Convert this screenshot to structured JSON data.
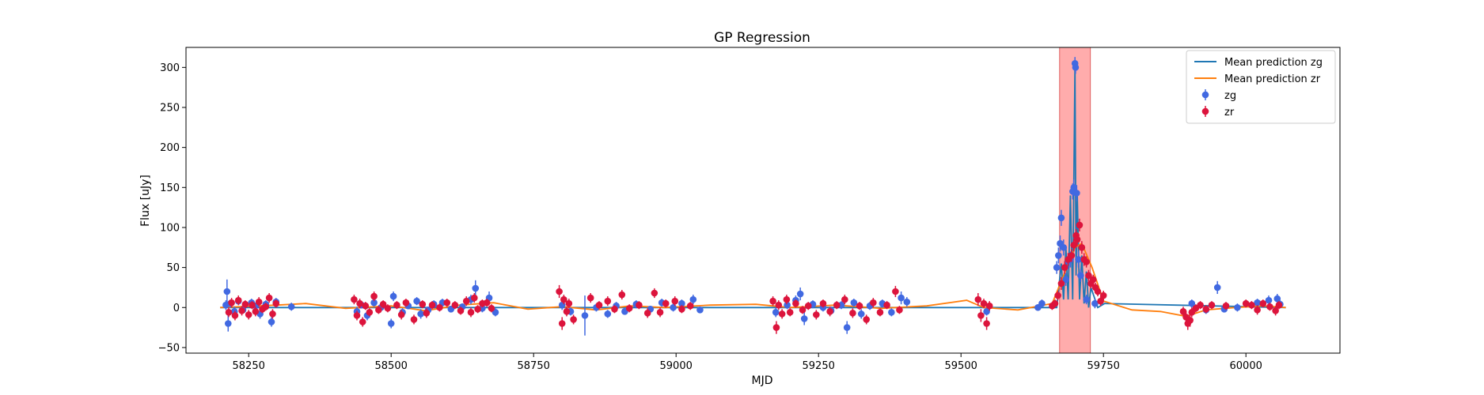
{
  "chart_data": {
    "type": "scatter",
    "title": "GP Regression",
    "xlabel": "MJD",
    "ylabel": "Flux [uJy]",
    "xlim": [
      58140,
      60165
    ],
    "ylim": [
      -57,
      325
    ],
    "xticks": [
      58250,
      58500,
      58750,
      59000,
      59250,
      59500,
      59750,
      60000
    ],
    "yticks": [
      -50,
      0,
      50,
      100,
      150,
      200,
      250,
      300
    ],
    "legend_position": "top-right",
    "highlight_span": {
      "x0": 59673,
      "x1": 59727,
      "color": "#ff8080"
    },
    "series": [
      {
        "name": "Mean prediction zg",
        "kind": "line",
        "color": "#1f77b4",
        "x": [
          58200,
          59660,
          59668,
          59676,
          59680,
          59684,
          59688,
          59692,
          59696,
          59700,
          59702,
          59704,
          59708,
          59712,
          59716,
          59720,
          59724,
          59728,
          59740,
          59752,
          60070
        ],
        "y": [
          0,
          0,
          0,
          55,
          10,
          75,
          10,
          140,
          10,
          300,
          40,
          140,
          10,
          65,
          5,
          45,
          0,
          25,
          0,
          5,
          0
        ]
      },
      {
        "name": "Mean prediction zr",
        "kind": "line",
        "color": "#ff7f0e",
        "x": [
          58200,
          58300,
          58350,
          58420,
          58500,
          58560,
          58620,
          58680,
          58740,
          58800,
          58860,
          58920,
          58980,
          59060,
          59140,
          59200,
          59280,
          59360,
          59440,
          59510,
          59540,
          59600,
          59660,
          59680,
          59700,
          59712,
          59730,
          59750,
          59800,
          59850,
          59895,
          59930,
          59980,
          60030,
          60070
        ],
        "y": [
          0,
          3,
          5,
          -1,
          2,
          -4,
          3,
          6,
          -2,
          1,
          -3,
          2,
          0,
          3,
          4,
          0,
          3,
          -1,
          2,
          9,
          0,
          -3,
          5,
          40,
          75,
          80,
          50,
          8,
          -3,
          -5,
          -11,
          -3,
          0,
          2,
          0
        ]
      },
      {
        "name": "zg",
        "kind": "errorbar",
        "color": "#4169e1",
        "points": [
          [
            58210,
            3,
            6
          ],
          [
            58212,
            20,
            15
          ],
          [
            58214,
            -20,
            10
          ],
          [
            58218,
            5,
            5
          ],
          [
            58225,
            -5,
            6
          ],
          [
            58232,
            8,
            5
          ],
          [
            58240,
            -3,
            4
          ],
          [
            58255,
            6,
            5
          ],
          [
            58262,
            2,
            4
          ],
          [
            58270,
            -8,
            6
          ],
          [
            58280,
            4,
            5
          ],
          [
            58290,
            -18,
            6
          ],
          [
            58298,
            7,
            5
          ],
          [
            58325,
            1,
            5
          ],
          [
            58440,
            -5,
            6
          ],
          [
            58448,
            3,
            4
          ],
          [
            58458,
            -10,
            6
          ],
          [
            58470,
            6,
            5
          ],
          [
            58482,
            0,
            4
          ],
          [
            58500,
            -20,
            6
          ],
          [
            58504,
            14,
            6
          ],
          [
            58520,
            -6,
            5
          ],
          [
            58530,
            2,
            4
          ],
          [
            58545,
            8,
            5
          ],
          [
            58552,
            -8,
            6
          ],
          [
            58565,
            -3,
            4
          ],
          [
            58575,
            4,
            5
          ],
          [
            58590,
            6,
            5
          ],
          [
            58605,
            -2,
            4
          ],
          [
            58625,
            1,
            4
          ],
          [
            58640,
            10,
            6
          ],
          [
            58648,
            24,
            10
          ],
          [
            58660,
            -1,
            5
          ],
          [
            58672,
            12,
            8
          ],
          [
            58683,
            -6,
            5
          ],
          [
            58800,
            3,
            6
          ],
          [
            58815,
            -5,
            5
          ],
          [
            58840,
            -10,
            25
          ],
          [
            58860,
            0,
            5
          ],
          [
            58880,
            -8,
            5
          ],
          [
            58895,
            2,
            5
          ],
          [
            58910,
            -5,
            4
          ],
          [
            58930,
            4,
            5
          ],
          [
            58955,
            -2,
            4
          ],
          [
            58975,
            6,
            5
          ],
          [
            58995,
            0,
            5
          ],
          [
            59010,
            5,
            5
          ],
          [
            59030,
            10,
            6
          ],
          [
            59042,
            -3,
            4
          ],
          [
            59175,
            -6,
            6
          ],
          [
            59195,
            3,
            5
          ],
          [
            59210,
            9,
            6
          ],
          [
            59218,
            17,
            8
          ],
          [
            59225,
            -14,
            8
          ],
          [
            59240,
            4,
            5
          ],
          [
            59258,
            0,
            5
          ],
          [
            59272,
            -4,
            5
          ],
          [
            59290,
            3,
            5
          ],
          [
            59300,
            -25,
            8
          ],
          [
            59312,
            6,
            5
          ],
          [
            59325,
            -8,
            6
          ],
          [
            59340,
            2,
            5
          ],
          [
            59362,
            5,
            5
          ],
          [
            59378,
            -6,
            5
          ],
          [
            59395,
            12,
            8
          ],
          [
            59405,
            7,
            6
          ],
          [
            59545,
            -5,
            5
          ],
          [
            59635,
            0,
            4
          ],
          [
            59642,
            5,
            5
          ],
          [
            59668,
            50,
            8
          ],
          [
            59671,
            65,
            10
          ],
          [
            59674,
            80,
            10
          ],
          [
            59676,
            112,
            10
          ],
          [
            59680,
            75,
            10
          ],
          [
            59684,
            35,
            8
          ],
          [
            59688,
            58,
            10
          ],
          [
            59692,
            60,
            10
          ],
          [
            59696,
            145,
            10
          ],
          [
            59698,
            150,
            10
          ],
          [
            59700,
            305,
            8
          ],
          [
            59701,
            300,
            8
          ],
          [
            59703,
            143,
            10
          ],
          [
            59706,
            60,
            10
          ],
          [
            59710,
            40,
            8
          ],
          [
            59720,
            10,
            6
          ],
          [
            59735,
            5,
            6
          ],
          [
            59905,
            5,
            5
          ],
          [
            59930,
            -3,
            5
          ],
          [
            59950,
            25,
            8
          ],
          [
            59962,
            -2,
            4
          ],
          [
            59985,
            0,
            5
          ],
          [
            60020,
            6,
            5
          ],
          [
            60040,
            9,
            6
          ],
          [
            60055,
            11,
            6
          ],
          [
            60060,
            4,
            5
          ]
        ]
      },
      {
        "name": "zr",
        "kind": "errorbar",
        "color": "#dc143c",
        "points": [
          [
            58215,
            -6,
            6
          ],
          [
            58220,
            6,
            6
          ],
          [
            58226,
            -10,
            6
          ],
          [
            58232,
            9,
            6
          ],
          [
            58238,
            -4,
            6
          ],
          [
            58244,
            4,
            5
          ],
          [
            58250,
            -9,
            6
          ],
          [
            58256,
            3,
            5
          ],
          [
            58262,
            -5,
            6
          ],
          [
            58268,
            7,
            6
          ],
          [
            58274,
            -2,
            5
          ],
          [
            58280,
            1,
            5
          ],
          [
            58286,
            12,
            6
          ],
          [
            58292,
            -8,
            6
          ],
          [
            58298,
            5,
            5
          ],
          [
            58435,
            10,
            6
          ],
          [
            58440,
            -10,
            6
          ],
          [
            58445,
            5,
            6
          ],
          [
            58450,
            -18,
            6
          ],
          [
            58455,
            2,
            5
          ],
          [
            58462,
            -6,
            5
          ],
          [
            58470,
            14,
            6
          ],
          [
            58478,
            -3,
            5
          ],
          [
            58486,
            4,
            5
          ],
          [
            58494,
            -1,
            5
          ],
          [
            58510,
            3,
            5
          ],
          [
            58518,
            -9,
            6
          ],
          [
            58526,
            6,
            5
          ],
          [
            58540,
            -15,
            6
          ],
          [
            58555,
            4,
            5
          ],
          [
            58562,
            -7,
            6
          ],
          [
            58572,
            3,
            5
          ],
          [
            58585,
            0,
            5
          ],
          [
            58598,
            6,
            5
          ],
          [
            58612,
            3,
            5
          ],
          [
            58622,
            -4,
            5
          ],
          [
            58632,
            8,
            6
          ],
          [
            58640,
            -6,
            6
          ],
          [
            58646,
            12,
            6
          ],
          [
            58652,
            -2,
            5
          ],
          [
            58660,
            5,
            5
          ],
          [
            58668,
            6,
            5
          ],
          [
            58676,
            -1,
            5
          ],
          [
            58795,
            20,
            8
          ],
          [
            58800,
            -20,
            8
          ],
          [
            58803,
            10,
            6
          ],
          [
            58808,
            -5,
            6
          ],
          [
            58812,
            5,
            6
          ],
          [
            58820,
            -15,
            6
          ],
          [
            58850,
            12,
            6
          ],
          [
            58865,
            3,
            5
          ],
          [
            58880,
            8,
            6
          ],
          [
            58892,
            -2,
            5
          ],
          [
            58905,
            16,
            6
          ],
          [
            58918,
            -1,
            5
          ],
          [
            58935,
            3,
            5
          ],
          [
            58950,
            -7,
            6
          ],
          [
            58962,
            18,
            6
          ],
          [
            58972,
            -6,
            6
          ],
          [
            58982,
            5,
            5
          ],
          [
            58998,
            8,
            6
          ],
          [
            59010,
            -2,
            5
          ],
          [
            59025,
            2,
            5
          ],
          [
            59170,
            8,
            6
          ],
          [
            59176,
            -25,
            8
          ],
          [
            59180,
            3,
            6
          ],
          [
            59186,
            -8,
            6
          ],
          [
            59194,
            10,
            6
          ],
          [
            59200,
            -6,
            5
          ],
          [
            59210,
            5,
            5
          ],
          [
            59222,
            -3,
            5
          ],
          [
            59232,
            2,
            5
          ],
          [
            59246,
            -9,
            6
          ],
          [
            59258,
            5,
            5
          ],
          [
            59270,
            -5,
            6
          ],
          [
            59282,
            3,
            5
          ],
          [
            59296,
            10,
            6
          ],
          [
            59310,
            -7,
            6
          ],
          [
            59322,
            2,
            5
          ],
          [
            59334,
            -15,
            6
          ],
          [
            59346,
            6,
            6
          ],
          [
            59358,
            -6,
            5
          ],
          [
            59370,
            3,
            5
          ],
          [
            59385,
            20,
            7
          ],
          [
            59392,
            -3,
            5
          ],
          [
            59530,
            10,
            8
          ],
          [
            59535,
            -10,
            8
          ],
          [
            59540,
            5,
            6
          ],
          [
            59545,
            -20,
            8
          ],
          [
            59550,
            2,
            6
          ],
          [
            59660,
            2,
            5
          ],
          [
            59665,
            5,
            5
          ],
          [
            59670,
            15,
            6
          ],
          [
            59676,
            30,
            8
          ],
          [
            59682,
            50,
            8
          ],
          [
            59688,
            60,
            8
          ],
          [
            59694,
            65,
            8
          ],
          [
            59698,
            78,
            8
          ],
          [
            59702,
            90,
            8
          ],
          [
            59704,
            85,
            8
          ],
          [
            59708,
            103,
            8
          ],
          [
            59712,
            75,
            8
          ],
          [
            59716,
            60,
            8
          ],
          [
            59720,
            57,
            7
          ],
          [
            59724,
            40,
            7
          ],
          [
            59728,
            30,
            6
          ],
          [
            59732,
            35,
            6
          ],
          [
            59736,
            25,
            6
          ],
          [
            59740,
            20,
            6
          ],
          [
            59745,
            8,
            6
          ],
          [
            59750,
            15,
            6
          ],
          [
            59890,
            -5,
            6
          ],
          [
            59895,
            -12,
            8
          ],
          [
            59898,
            -20,
            8
          ],
          [
            59902,
            -16,
            8
          ],
          [
            59905,
            -6,
            6
          ],
          [
            59912,
            -1,
            5
          ],
          [
            59920,
            3,
            5
          ],
          [
            59930,
            -2,
            5
          ],
          [
            59940,
            3,
            5
          ],
          [
            59965,
            2,
            5
          ],
          [
            60000,
            5,
            5
          ],
          [
            60010,
            3,
            5
          ],
          [
            60020,
            -3,
            6
          ],
          [
            60030,
            5,
            5
          ],
          [
            60042,
            1,
            5
          ],
          [
            60052,
            -4,
            6
          ],
          [
            60058,
            3,
            5
          ]
        ]
      }
    ]
  }
}
